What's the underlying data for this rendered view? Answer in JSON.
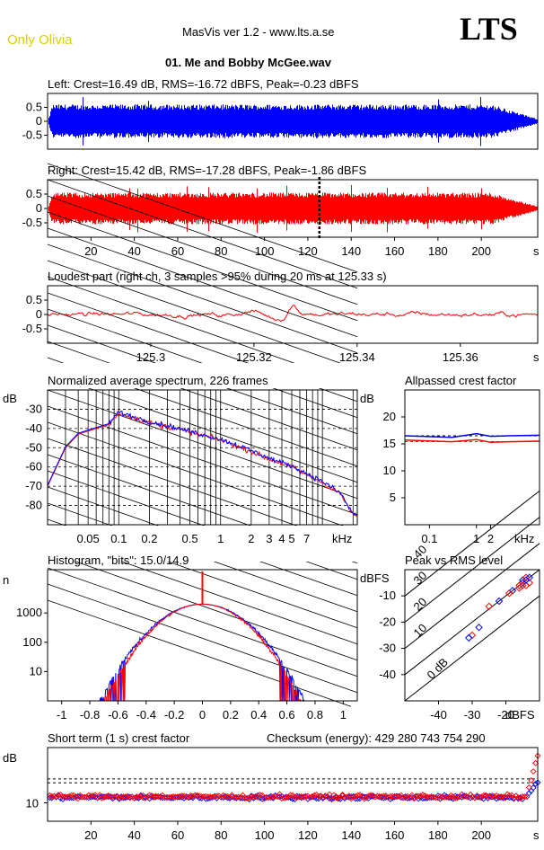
{
  "header": {
    "brand": "Only Olivia",
    "app_title": "MasVis ver 1.2 - www.lts.a.se",
    "logo": "LTS",
    "file_title": "01. Me and Bobby McGee.wav"
  },
  "colors": {
    "left": "#0000ff",
    "right": "#ff0000"
  },
  "chart_data": [
    {
      "type": "line",
      "name": "left-waveform",
      "title": "Left: Crest=16.49 dB, RMS=-16.72 dBFS, Peak=-0.23 dBFS",
      "yticks": [
        "0.5",
        "0",
        "-0.5"
      ],
      "ylim": [
        -1,
        1
      ],
      "xlim": [
        0,
        226
      ],
      "xticks": [],
      "xunit": "",
      "envelope": {
        "start_s": 0,
        "end_s": 226,
        "level": 0.55,
        "fade_start_s": 205
      }
    },
    {
      "type": "line",
      "name": "right-waveform",
      "title": "Right: Crest=15.42 dB, RMS=-17.28 dBFS, Peak=-1.86 dBFS",
      "yticks": [
        "0.5",
        "0",
        "-0.5"
      ],
      "ylim": [
        -1,
        1
      ],
      "xlim": [
        0,
        226
      ],
      "xticks": [
        "20",
        "40",
        "60",
        "80",
        "100",
        "120",
        "140",
        "160",
        "180",
        "200"
      ],
      "xunit": "s",
      "marker_s": 125.33,
      "envelope": {
        "start_s": 0,
        "end_s": 226,
        "level": 0.5,
        "fade_start_s": 205
      }
    },
    {
      "type": "line",
      "name": "loudest-part",
      "title": "Loudest part (right ch, 3 samples >95% during 20 ms at 125.33 s)",
      "yticks": [
        "0.5",
        "0",
        "-0.5"
      ],
      "ylim": [
        -1,
        1
      ],
      "xlim": [
        125.28,
        125.375
      ],
      "xticks": [
        "125.3",
        "125.32",
        "125.34",
        "125.36"
      ],
      "xunit": "s"
    },
    {
      "type": "line",
      "name": "spectrum",
      "title": "Normalized average spectrum, 226 frames",
      "ylabel": "dB",
      "yticks": [
        "-30",
        "-40",
        "-50",
        "-60",
        "-70",
        "-80"
      ],
      "ylim": [
        -90,
        -20
      ],
      "xticks": [
        "0.05",
        "0.1",
        "0.2",
        "0.5",
        "1",
        "2",
        "3",
        "4",
        "5",
        "7"
      ],
      "xunit": "kHz",
      "xlim": [
        0.02,
        22
      ],
      "points_khz_db": [
        [
          0.02,
          -70
        ],
        [
          0.03,
          -50
        ],
        [
          0.04,
          -43
        ],
        [
          0.06,
          -40
        ],
        [
          0.08,
          -38
        ],
        [
          0.1,
          -32
        ],
        [
          0.15,
          -35
        ],
        [
          0.2,
          -37
        ],
        [
          0.3,
          -39
        ],
        [
          0.5,
          -42
        ],
        [
          0.7,
          -44
        ],
        [
          1,
          -46
        ],
        [
          2,
          -52
        ],
        [
          3,
          -56
        ],
        [
          5,
          -60
        ],
        [
          7,
          -64
        ],
        [
          10,
          -68
        ],
        [
          15,
          -74
        ],
        [
          20,
          -85
        ]
      ]
    },
    {
      "type": "line",
      "name": "allpassed-crest",
      "title": "Allpassed crest factor",
      "ylabel": "dB",
      "yticks": [
        "20",
        "15",
        "10",
        "5"
      ],
      "ylim": [
        0,
        25
      ],
      "xticks": [
        "0.1",
        "1",
        "2"
      ],
      "xunit": "kHz",
      "xlim": [
        0.03,
        22
      ],
      "series": [
        {
          "name": "",
          "x": [
            0.03,
            0.3,
            1,
            2,
            5,
            22
          ],
          "y": [
            16.5,
            16.2,
            16.9,
            16.4,
            16.5,
            16.6
          ]
        },
        {
          "name": "",
          "x": [
            0.03,
            0.3,
            1,
            2,
            5,
            22
          ],
          "y": [
            15.7,
            15.4,
            15.8,
            15.3,
            15.4,
            15.5
          ]
        }
      ],
      "dashed": [
        16.49,
        15.42
      ]
    },
    {
      "type": "line",
      "name": "histogram",
      "title": "Histogram, \"bits\": 15.0/14.9",
      "ylabel": "n",
      "yticks": [
        "1000",
        "100",
        "10"
      ],
      "ylim": [
        1,
        30000
      ],
      "xticks": [
        "-1",
        "-0.8",
        "-0.6",
        "-0.4",
        "-0.2",
        "0",
        "0.2",
        "0.4",
        "0.6",
        "0.8",
        "1"
      ],
      "xlim": [
        -1.1,
        1.1
      ],
      "peak_count": 2000
    },
    {
      "type": "scatter",
      "name": "peak-vs-rms",
      "title": "Peak vs RMS level",
      "ylabel": "dBFS",
      "xlabel": "dBFS",
      "yticks": [
        "-10",
        "-20",
        "-30",
        "-40"
      ],
      "ylim": [
        -50,
        0
      ],
      "xticks": [
        "-40",
        "-30",
        "-20"
      ],
      "xlim": [
        -50,
        -10
      ],
      "diag_labels": [
        "40",
        "30",
        "20",
        "10",
        "0 dB"
      ],
      "points": [
        [
          -14,
          -6
        ],
        [
          -15,
          -5
        ],
        [
          -16,
          -6
        ],
        [
          -15,
          -4
        ],
        [
          -13,
          -5
        ],
        [
          -14,
          -4
        ],
        [
          -16,
          -7
        ],
        [
          -18,
          -8
        ],
        [
          -19,
          -9
        ],
        [
          -22,
          -12
        ],
        [
          -25,
          -14
        ],
        [
          -28,
          -22
        ],
        [
          -30,
          -25
        ],
        [
          -31,
          -26
        ],
        [
          -14,
          -3
        ],
        [
          -13,
          -3
        ],
        [
          -15,
          -6
        ]
      ]
    },
    {
      "type": "scatter",
      "name": "short-term-crest",
      "title": "Short term (1 s) crest factor",
      "checksum": "Checksum (energy):   429 280 743 754 290",
      "ylabel": "dB",
      "yticks": [
        "10"
      ],
      "ylim": [
        5,
        25
      ],
      "xticks": [
        "20",
        "40",
        "60",
        "80",
        "100",
        "120",
        "140",
        "160",
        "180",
        "200"
      ],
      "xunit": "s",
      "xlim": [
        0,
        226
      ],
      "dashed": [
        16.49,
        15.42
      ],
      "base_level": 11.5
    }
  ]
}
